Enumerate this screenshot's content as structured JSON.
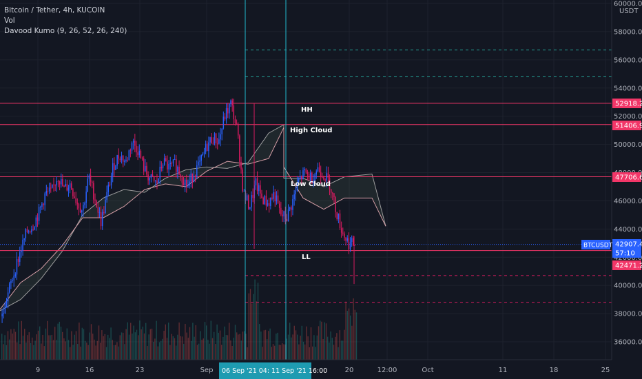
{
  "legend": {
    "symbol": "Bitcoin / Tether, 4h, KUCOIN",
    "volume": "Vol",
    "indicator": "Davood Kumo (9, 26, 52, 26, 240)"
  },
  "currency": "USDT",
  "price_ticks": [
    "60000.0",
    "58000.0",
    "56000.0",
    "54000.0",
    "52000.0",
    "50000.0",
    "48000.0",
    "46000.0",
    "44000.0",
    "42000.0",
    "40000.0",
    "38000.0",
    "36000.0"
  ],
  "time_ticks": [
    "9",
    "16",
    "23",
    "Sep",
    "20",
    "12:00",
    "Oct",
    "11",
    "18",
    "25"
  ],
  "time_highlight": "06 Sep '21   04:  11 Sep '21   16:00",
  "price_tags": [
    {
      "label": "52918.2",
      "color": "#f23668"
    },
    {
      "label": "51406.9",
      "color": "#f23668"
    },
    {
      "label": "47706.6",
      "color": "#f23668"
    },
    {
      "label": "42907.4",
      "color": "#2962ff"
    },
    {
      "label": "57:10",
      "color": "#2962ff"
    },
    {
      "label": "42471.2",
      "color": "#f23668"
    }
  ],
  "symbol_tag": "BTCUSDT",
  "annotations": [
    "HH",
    "High Cloud",
    "Low Cloud",
    "LL"
  ],
  "chart_data": {
    "type": "candlestick",
    "title": "Bitcoin / Tether, 4h, KUCOIN",
    "ylim": [
      35000,
      60500
    ],
    "horizontal_levels": [
      52918.2,
      51406.9,
      47706.6,
      42471.2
    ],
    "current_price": 42907.4,
    "dashed_levels_teal": [
      56700,
      54800
    ],
    "dashed_levels_red": [
      40700,
      38800
    ],
    "price_path": [
      37800,
      39500,
      41000,
      42500,
      43800,
      44300,
      45200,
      46500,
      46600,
      47800,
      46800,
      47200,
      46000,
      45300,
      47700,
      46200,
      44500,
      46500,
      48500,
      49300,
      48700,
      50200,
      49600,
      48200,
      47500,
      47200,
      48800,
      48300,
      48600,
      47800,
      47000,
      48000,
      48600,
      49800,
      50500,
      50200,
      52000,
      52900,
      51000,
      46500,
      45600,
      47200,
      46200,
      45800,
      46500,
      45000,
      44800,
      46000,
      47500,
      48000,
      47600,
      48300,
      47900,
      47200,
      45300,
      43800,
      43000,
      42900
    ]
  }
}
